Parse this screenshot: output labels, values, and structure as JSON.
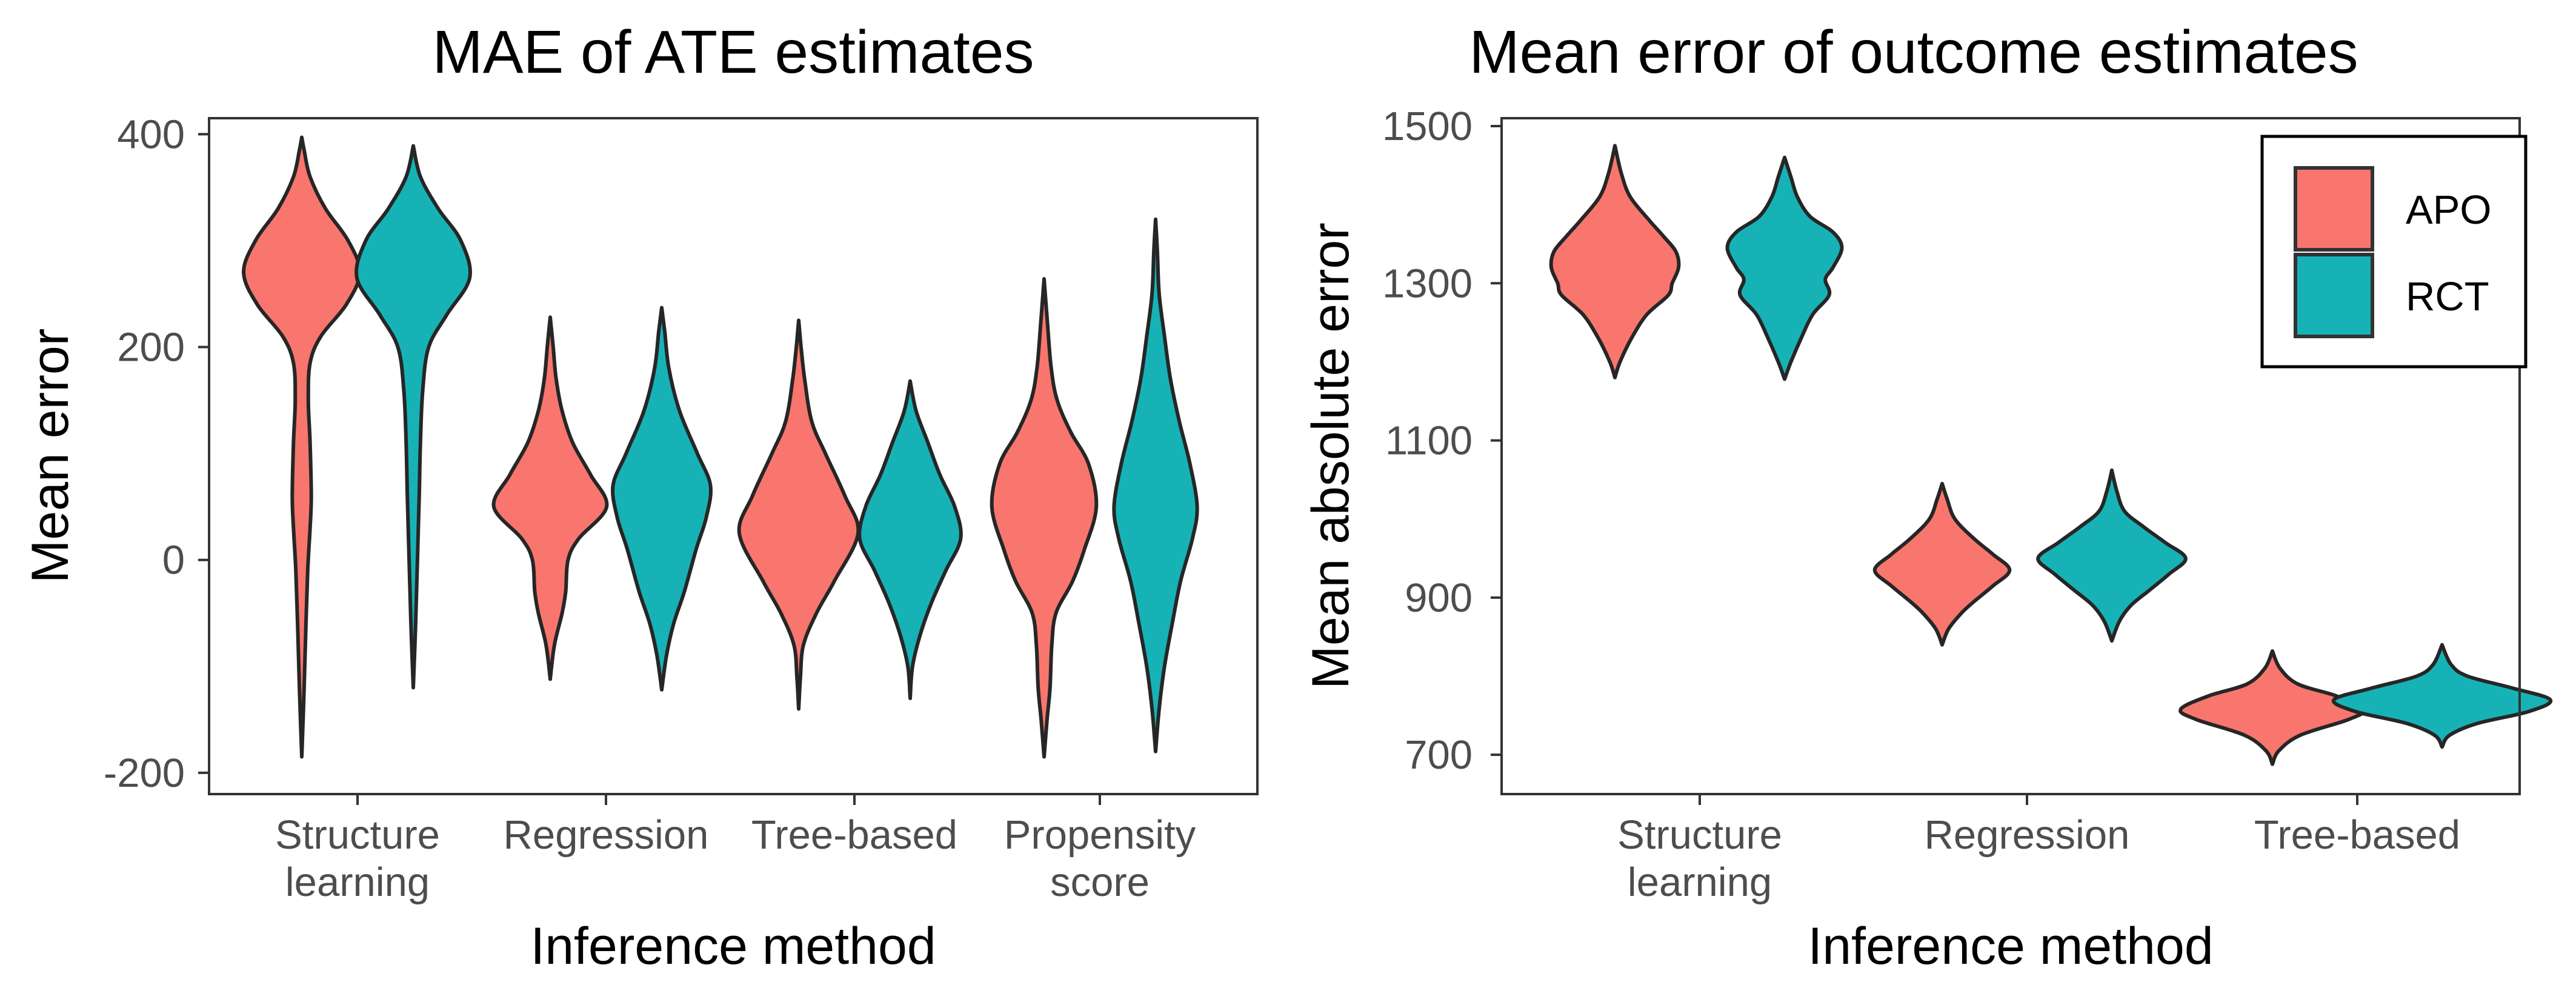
{
  "chart_data": [
    {
      "type": "violin",
      "title": "MAE of ATE estimates",
      "xlabel": "Inference method",
      "ylabel": "Mean error",
      "ylim": [
        -220,
        415
      ],
      "yticks": [
        -200,
        0,
        200,
        400
      ],
      "ytick_labels": [
        "-200",
        "0",
        "200",
        "400"
      ],
      "categories": [
        "Structure\nlearning",
        "Regression",
        "Tree-based",
        "Propensity\nscore"
      ],
      "grid": false,
      "series": [
        {
          "name": "APO",
          "color": "#F8766D",
          "violins": [
            {
              "category": "Structure\nlearning",
              "profile": [
                [
                  -185,
                  0
                ],
                [
                  -120,
                  0.04
                ],
                [
                  -60,
                  0.07
                ],
                [
                  -10,
                  0.1
                ],
                [
                  30,
                  0.14
                ],
                [
                  60,
                  0.16
                ],
                [
                  110,
                  0.14
                ],
                [
                  150,
                  0.11
                ],
                [
                  185,
                  0.14
                ],
                [
                  210,
                  0.32
                ],
                [
                  240,
                  0.75
                ],
                [
                  270,
                  0.98
                ],
                [
                  300,
                  0.78
                ],
                [
                  330,
                  0.4
                ],
                [
                  360,
                  0.14
                ],
                [
                  385,
                  0.04
                ],
                [
                  397,
                  0
                ]
              ]
            },
            {
              "category": "Regression",
              "profile": [
                [
                  -112,
                  0
                ],
                [
                  -80,
                  0.07
                ],
                [
                  -50,
                  0.2
                ],
                [
                  -30,
                  0.26
                ],
                [
                  0,
                  0.3
                ],
                [
                  20,
                  0.48
                ],
                [
                  50,
                  0.95
                ],
                [
                  80,
                  0.68
                ],
                [
                  110,
                  0.38
                ],
                [
                  140,
                  0.2
                ],
                [
                  170,
                  0.1
                ],
                [
                  200,
                  0.05
                ],
                [
                  228,
                  0
                ]
              ]
            },
            {
              "category": "Tree-based",
              "profile": [
                [
                  -140,
                  0
                ],
                [
                  -110,
                  0.03
                ],
                [
                  -80,
                  0.08
                ],
                [
                  -50,
                  0.3
                ],
                [
                  -20,
                  0.6
                ],
                [
                  25,
                  1.0
                ],
                [
                  60,
                  0.78
                ],
                [
                  100,
                  0.45
                ],
                [
                  130,
                  0.22
                ],
                [
                  170,
                  0.1
                ],
                [
                  200,
                  0.04
                ],
                [
                  225,
                  0
                ]
              ]
            },
            {
              "category": "Propensity\nscore",
              "profile": [
                [
                  -185,
                  0
                ],
                [
                  -150,
                  0.05
                ],
                [
                  -120,
                  0.1
                ],
                [
                  -80,
                  0.13
                ],
                [
                  -50,
                  0.2
                ],
                [
                  -20,
                  0.48
                ],
                [
                  10,
                  0.68
                ],
                [
                  50,
                  0.88
                ],
                [
                  90,
                  0.75
                ],
                [
                  120,
                  0.45
                ],
                [
                  150,
                  0.22
                ],
                [
                  180,
                  0.12
                ],
                [
                  220,
                  0.06
                ],
                [
                  264,
                  0
                ]
              ]
            }
          ]
        },
        {
          "name": "RCT",
          "color": "#17B2B6",
          "violins": [
            {
              "category": "Structure\nlearning",
              "profile": [
                [
                  -120,
                  0
                ],
                [
                  -60,
                  0.04
                ],
                [
                  0,
                  0.07
                ],
                [
                  60,
                  0.1
                ],
                [
                  110,
                  0.12
                ],
                [
                  160,
                  0.16
                ],
                [
                  200,
                  0.26
                ],
                [
                  230,
                  0.56
                ],
                [
                  265,
                  0.95
                ],
                [
                  300,
                  0.8
                ],
                [
                  330,
                  0.42
                ],
                [
                  360,
                  0.12
                ],
                [
                  389,
                  0
                ]
              ]
            },
            {
              "category": "Regression",
              "profile": [
                [
                  -122,
                  0
                ],
                [
                  -90,
                  0.08
                ],
                [
                  -60,
                  0.2
                ],
                [
                  -30,
                  0.38
                ],
                [
                  10,
                  0.58
                ],
                [
                  40,
                  0.75
                ],
                [
                  70,
                  0.82
                ],
                [
                  100,
                  0.6
                ],
                [
                  140,
                  0.3
                ],
                [
                  180,
                  0.12
                ],
                [
                  215,
                  0.05
                ],
                [
                  237,
                  0
                ]
              ]
            },
            {
              "category": "Tree-based",
              "profile": [
                [
                  -130,
                  0
                ],
                [
                  -100,
                  0.04
                ],
                [
                  -70,
                  0.17
                ],
                [
                  -40,
                  0.36
                ],
                [
                  -10,
                  0.6
                ],
                [
                  20,
                  0.85
                ],
                [
                  50,
                  0.75
                ],
                [
                  80,
                  0.5
                ],
                [
                  110,
                  0.3
                ],
                [
                  140,
                  0.1
                ],
                [
                  168,
                  0
                ]
              ]
            },
            {
              "category": "Propensity\nscore",
              "profile": [
                [
                  -180,
                  0
                ],
                [
                  -140,
                  0.06
                ],
                [
                  -100,
                  0.15
                ],
                [
                  -60,
                  0.28
                ],
                [
                  -20,
                  0.42
                ],
                [
                  20,
                  0.62
                ],
                [
                  50,
                  0.7
                ],
                [
                  90,
                  0.58
                ],
                [
                  130,
                  0.4
                ],
                [
                  170,
                  0.25
                ],
                [
                  210,
                  0.15
                ],
                [
                  250,
                  0.06
                ],
                [
                  290,
                  0.03
                ],
                [
                  320,
                  0
                ]
              ]
            }
          ]
        }
      ]
    },
    {
      "type": "violin",
      "title": "Mean error of outcome estimates",
      "xlabel": "Inference method",
      "ylabel": "Mean absolute error",
      "ylim": [
        650,
        1510
      ],
      "yticks": [
        700,
        900,
        1100,
        1300,
        1500
      ],
      "ytick_labels": [
        "700",
        "900",
        "1100",
        "1300",
        "1500"
      ],
      "categories": [
        "Structure\nlearning",
        "Regression",
        "Tree-based"
      ],
      "grid": false,
      "legend": {
        "position": "top-right",
        "entries": [
          "APO",
          "RCT"
        ]
      },
      "series": [
        {
          "name": "APO",
          "color": "#F8766D",
          "violins": [
            {
              "category": "Structure\nlearning",
              "profile": [
                [
                  1180,
                  0
                ],
                [
                  1200,
                  0.04
                ],
                [
                  1230,
                  0.13
                ],
                [
                  1260,
                  0.25
                ],
                [
                  1285,
                  0.42
                ],
                [
                  1300,
                  0.45
                ],
                [
                  1320,
                  0.5
                ],
                [
                  1340,
                  0.48
                ],
                [
                  1360,
                  0.38
                ],
                [
                  1380,
                  0.27
                ],
                [
                  1410,
                  0.12
                ],
                [
                  1440,
                  0.05
                ],
                [
                  1475,
                  0
                ]
              ]
            },
            {
              "category": "Regression",
              "profile": [
                [
                  840,
                  0
                ],
                [
                  860,
                  0.05
                ],
                [
                  880,
                  0.15
                ],
                [
                  895,
                  0.25
                ],
                [
                  915,
                  0.4
                ],
                [
                  935,
                  0.53
                ],
                [
                  955,
                  0.4
                ],
                [
                  975,
                  0.25
                ],
                [
                  1000,
                  0.1
                ],
                [
                  1025,
                  0.04
                ],
                [
                  1045,
                  0
                ]
              ]
            },
            {
              "category": "Tree-based",
              "profile": [
                [
                  688,
                  0
                ],
                [
                  705,
                  0.05
                ],
                [
                  725,
                  0.22
                ],
                [
                  745,
                  0.6
                ],
                [
                  758,
                  0.72
                ],
                [
                  775,
                  0.5
                ],
                [
                  790,
                  0.2
                ],
                [
                  810,
                  0.06
                ],
                [
                  832,
                  0
                ]
              ]
            }
          ]
        },
        {
          "name": "RCT",
          "color": "#17B2B6",
          "violins": [
            {
              "category": "Structure\nlearning",
              "profile": [
                [
                  1178,
                  0
                ],
                [
                  1200,
                  0.05
                ],
                [
                  1230,
                  0.13
                ],
                [
                  1260,
                  0.22
                ],
                [
                  1285,
                  0.35
                ],
                [
                  1305,
                  0.32
                ],
                [
                  1320,
                  0.38
                ],
                [
                  1345,
                  0.45
                ],
                [
                  1365,
                  0.38
                ],
                [
                  1385,
                  0.2
                ],
                [
                  1410,
                  0.1
                ],
                [
                  1435,
                  0.05
                ],
                [
                  1460,
                  0
                ]
              ]
            },
            {
              "category": "Regression",
              "profile": [
                [
                  845,
                  0
                ],
                [
                  870,
                  0.06
                ],
                [
                  890,
                  0.15
                ],
                [
                  910,
                  0.3
                ],
                [
                  930,
                  0.45
                ],
                [
                  950,
                  0.58
                ],
                [
                  970,
                  0.42
                ],
                [
                  990,
                  0.25
                ],
                [
                  1010,
                  0.1
                ],
                [
                  1035,
                  0.04
                ],
                [
                  1062,
                  0
                ]
              ]
            },
            {
              "category": "Tree-based",
              "profile": [
                [
                  710,
                  0
                ],
                [
                  725,
                  0.06
                ],
                [
                  740,
                  0.28
                ],
                [
                  755,
                  0.68
                ],
                [
                  770,
                  0.85
                ],
                [
                  785,
                  0.55
                ],
                [
                  800,
                  0.2
                ],
                [
                  815,
                  0.07
                ],
                [
                  840,
                  0
                ]
              ]
            }
          ]
        }
      ]
    }
  ]
}
